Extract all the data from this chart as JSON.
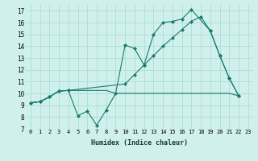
{
  "background_color": "#d0f0ec",
  "grid_color": "#aaddd8",
  "line_color": "#1a7a6e",
  "xlim": [
    0,
    23
  ],
  "ylim": [
    7,
    17.5
  ],
  "yticks": [
    7,
    8,
    9,
    10,
    11,
    12,
    13,
    14,
    15,
    16,
    17
  ],
  "xticks": [
    0,
    1,
    2,
    3,
    4,
    5,
    6,
    7,
    8,
    9,
    10,
    11,
    12,
    13,
    14,
    15,
    16,
    17,
    18,
    19,
    20,
    21,
    22,
    23
  ],
  "xlabel": "Humidex (Indice chaleur)",
  "series1_x": [
    0,
    1,
    2,
    3,
    4,
    5,
    6,
    7,
    8,
    9,
    10,
    11,
    12,
    13,
    14,
    15,
    16,
    17,
    19,
    20,
    21,
    22
  ],
  "series1_y": [
    9.2,
    9.3,
    9.7,
    10.2,
    10.25,
    8.1,
    8.5,
    7.3,
    8.6,
    10.0,
    14.1,
    13.8,
    12.4,
    15.0,
    16.0,
    16.1,
    16.3,
    17.1,
    15.3,
    13.2,
    11.3,
    9.8
  ],
  "series2_x": [
    0,
    1,
    2,
    3,
    4,
    5,
    6,
    7,
    8,
    9,
    10,
    11,
    12,
    13,
    14,
    15,
    16,
    17,
    18,
    19,
    20,
    21,
    22
  ],
  "series2_y": [
    9.2,
    9.3,
    9.7,
    10.2,
    10.25,
    10.25,
    10.25,
    10.25,
    10.25,
    10.0,
    10.0,
    10.0,
    10.0,
    10.0,
    10.0,
    10.0,
    10.0,
    10.0,
    10.0,
    10.0,
    10.0,
    10.0,
    9.8
  ],
  "series3_x": [
    0,
    1,
    2,
    3,
    4,
    10,
    11,
    12,
    13,
    14,
    15,
    16,
    17,
    18,
    19,
    20,
    21,
    22
  ],
  "series3_y": [
    9.2,
    9.3,
    9.7,
    10.2,
    10.25,
    10.8,
    11.6,
    12.4,
    13.2,
    14.0,
    14.7,
    15.4,
    16.1,
    16.5,
    15.3,
    13.2,
    11.3,
    9.8
  ]
}
